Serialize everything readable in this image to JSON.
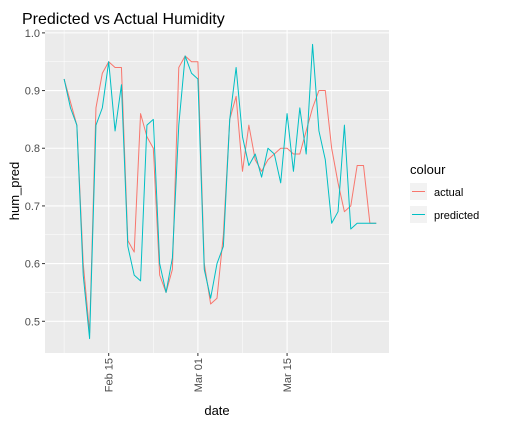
{
  "chart_data": {
    "type": "line",
    "title": "Predicted vs Actual Humidity",
    "xlabel": "date",
    "ylabel": "hum_pred",
    "legend_title": "colour",
    "legend_position": "right",
    "grid": true,
    "x_ticks": [
      "Feb 15",
      "Mar 01",
      "Mar 15"
    ],
    "y_ticks": [
      "0.5",
      "0.6",
      "0.7",
      "0.8",
      "0.9",
      "1.0"
    ],
    "x_tick_dates": [
      "2021-02-15",
      "2021-03-01",
      "2021-03-15"
    ],
    "y_tick_values": [
      0.5,
      0.6,
      0.7,
      0.8,
      0.9,
      1.0
    ],
    "xlim": [
      "2021-02-05",
      "2021-03-31"
    ],
    "ylim": [
      0.445,
      1.005
    ],
    "x": [
      "2021-02-08",
      "2021-02-09",
      "2021-02-10",
      "2021-02-11",
      "2021-02-12",
      "2021-02-13",
      "2021-02-14",
      "2021-02-15",
      "2021-02-16",
      "2021-02-17",
      "2021-02-18",
      "2021-02-19",
      "2021-02-20",
      "2021-02-21",
      "2021-02-22",
      "2021-02-23",
      "2021-02-24",
      "2021-02-25",
      "2021-02-26",
      "2021-02-27",
      "2021-02-28",
      "2021-03-01",
      "2021-03-02",
      "2021-03-03",
      "2021-03-04",
      "2021-03-05",
      "2021-03-06",
      "2021-03-07",
      "2021-03-08",
      "2021-03-09",
      "2021-03-10",
      "2021-03-11",
      "2021-03-12",
      "2021-03-13",
      "2021-03-14",
      "2021-03-15",
      "2021-03-16",
      "2021-03-17",
      "2021-03-18",
      "2021-03-19",
      "2021-03-20",
      "2021-03-21",
      "2021-03-22",
      "2021-03-23",
      "2021-03-24",
      "2021-03-25",
      "2021-03-26",
      "2021-03-27",
      "2021-03-28",
      "2021-03-29"
    ],
    "series": [
      {
        "name": "actual",
        "color": "#F8766D",
        "values": [
          0.92,
          0.88,
          0.84,
          0.6,
          0.48,
          0.87,
          0.93,
          0.95,
          0.94,
          0.94,
          0.64,
          0.62,
          0.86,
          0.82,
          0.8,
          0.58,
          0.55,
          0.59,
          0.94,
          0.96,
          0.95,
          0.95,
          0.6,
          0.53,
          0.54,
          0.65,
          0.85,
          0.89,
          0.76,
          0.84,
          0.78,
          0.76,
          0.78,
          0.79,
          0.8,
          0.8,
          0.79,
          0.79,
          0.83,
          0.87,
          0.9,
          0.9,
          0.8,
          0.74,
          0.69,
          0.7,
          0.77,
          0.77,
          0.67,
          0.67
        ]
      },
      {
        "name": "predicted",
        "color": "#00BFC4",
        "values": [
          0.92,
          0.87,
          0.84,
          0.58,
          0.47,
          0.84,
          0.87,
          0.95,
          0.83,
          0.91,
          0.63,
          0.58,
          0.57,
          0.84,
          0.85,
          0.6,
          0.55,
          0.61,
          0.84,
          0.96,
          0.93,
          0.92,
          0.59,
          0.54,
          0.6,
          0.63,
          0.85,
          0.94,
          0.82,
          0.77,
          0.79,
          0.75,
          0.8,
          0.79,
          0.74,
          0.86,
          0.76,
          0.87,
          0.79,
          0.98,
          0.83,
          0.78,
          0.67,
          0.69,
          0.84,
          0.66,
          0.67,
          0.67,
          0.67,
          0.67
        ]
      }
    ]
  }
}
